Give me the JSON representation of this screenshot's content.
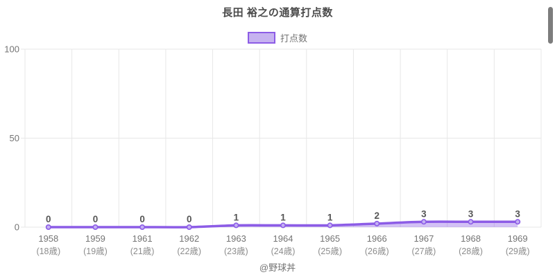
{
  "header": {
    "title": "長田 裕之の通算打点数"
  },
  "legend": {
    "label": "打点数"
  },
  "footer": {
    "credit": "@野球丼"
  },
  "colors": {
    "line": "#8c5ce6",
    "area_fill": "rgba(140,92,230,0.38)",
    "marker_fill": "#c4b0f4",
    "marker_stroke": "#8c5ce6",
    "legend_fill": "#c6b2f0",
    "legend_border": "#8c5ce6",
    "grid": "#e7e7e7",
    "axis_text": "#737373",
    "age_text": "#8c8c8c",
    "value_label": "#555555",
    "title_text": "#4a4a4a"
  },
  "chart_data": {
    "type": "area",
    "title": "長田 裕之の通算打点数",
    "series_name": "打点数",
    "categories": [
      "1958",
      "1959",
      "1961",
      "1962",
      "1963",
      "1964",
      "1965",
      "1966",
      "1967",
      "1968",
      "1969"
    ],
    "age_labels": [
      "(18歳)",
      "(19歳)",
      "(21歳)",
      "(22歳)",
      "(23歳)",
      "(24歳)",
      "(25歳)",
      "(26歳)",
      "(27歳)",
      "(28歳)",
      "(29歳)"
    ],
    "values": [
      0,
      0,
      0,
      0,
      1,
      1,
      1,
      2,
      3,
      3,
      3
    ],
    "ylim": [
      0,
      100
    ],
    "yticks": [
      0,
      50,
      100
    ],
    "grid": true,
    "legend_position": "top",
    "value_labels_shown": true
  }
}
